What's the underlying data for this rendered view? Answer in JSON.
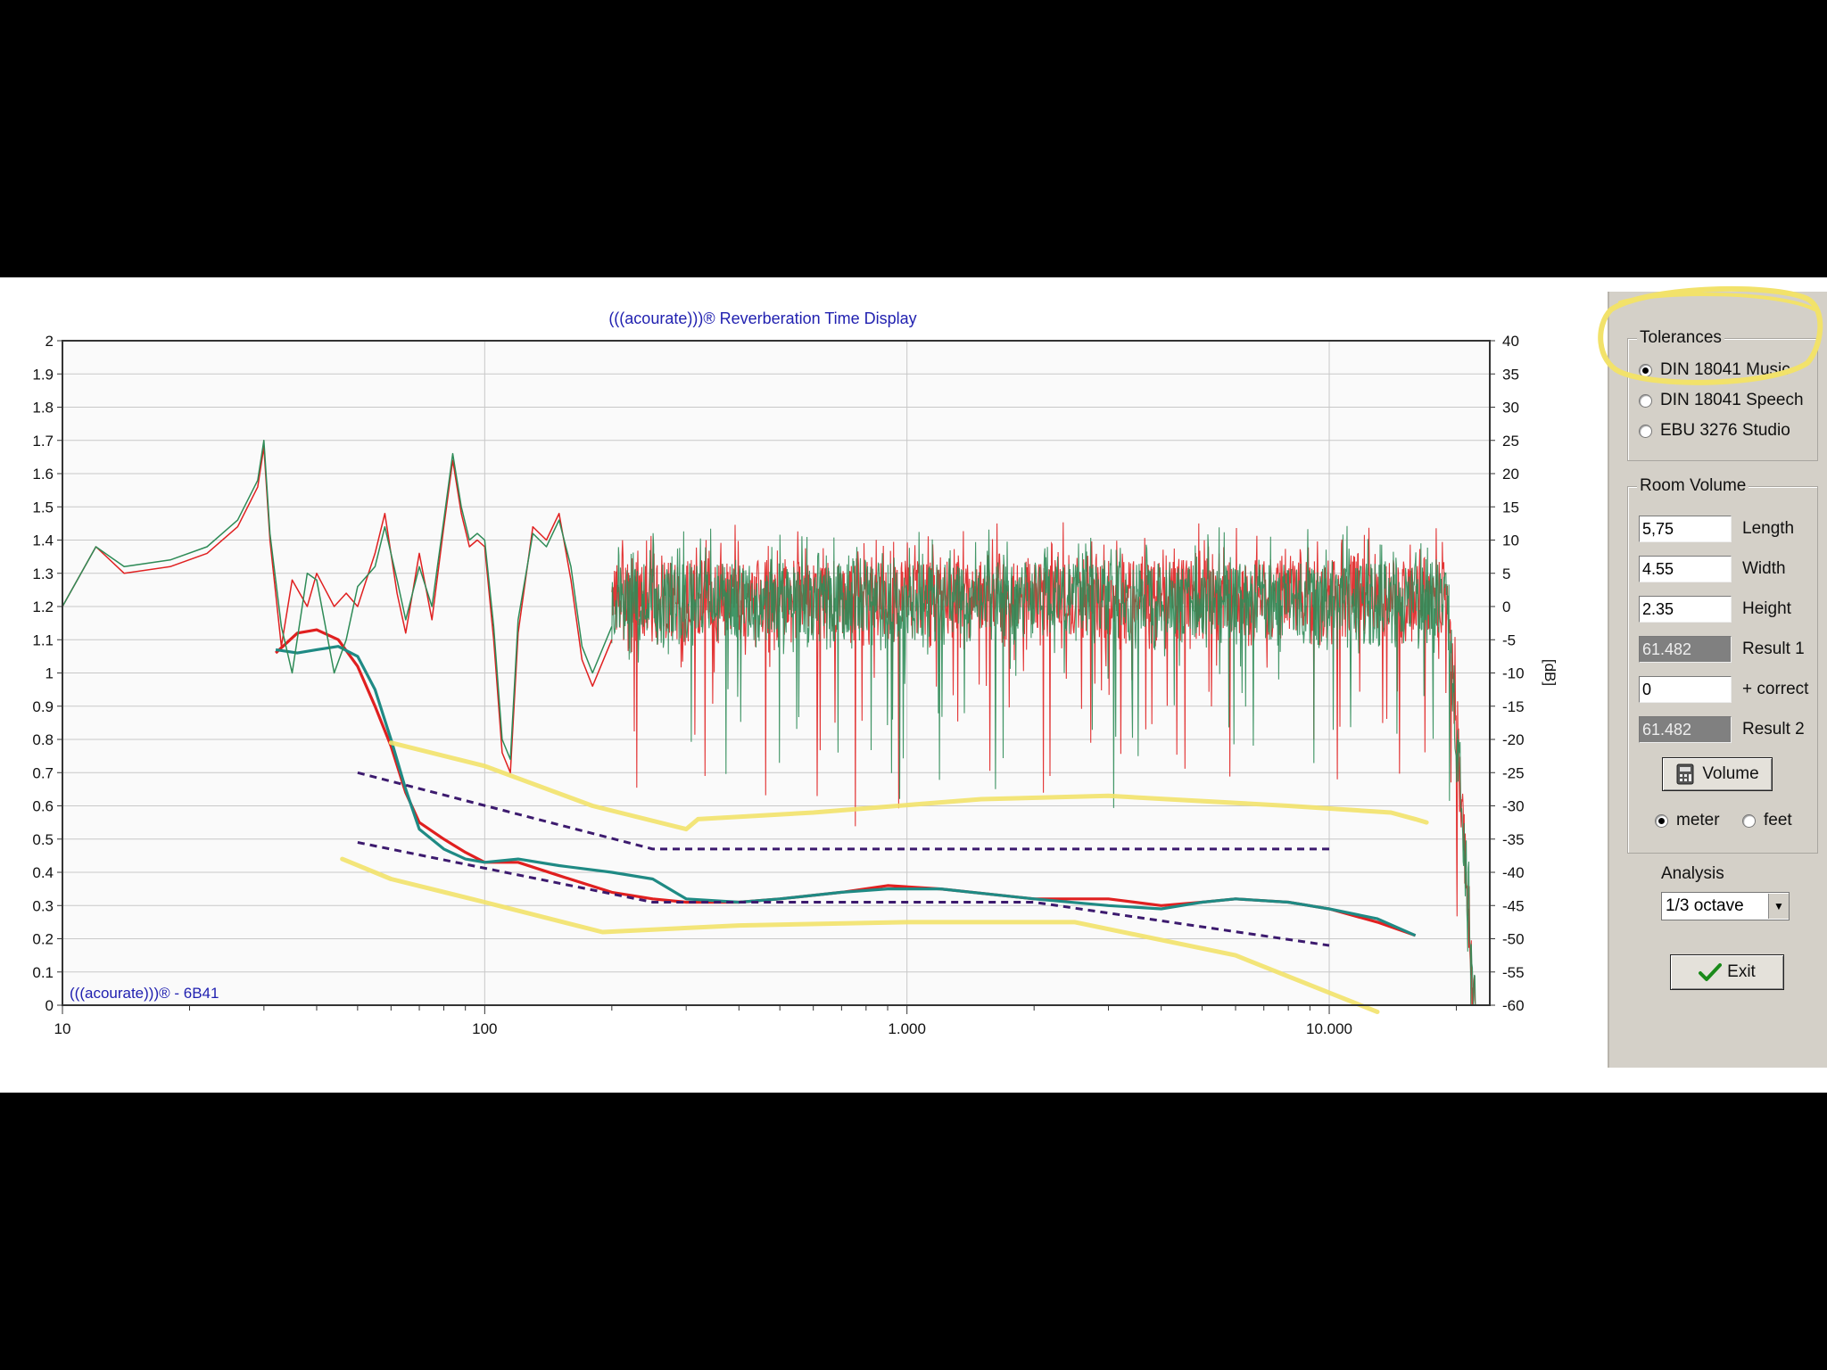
{
  "chart_data": {
    "type": "line",
    "title": "(((acourate)))® Reverberation Time Display",
    "watermark": "(((acourate)))® - 6B41",
    "xscale": "log",
    "xlim": [
      10,
      24000
    ],
    "xticks": [
      10,
      100,
      1000,
      10000
    ],
    "xtick_labels": [
      "10",
      "100",
      "1.000",
      "10.000"
    ],
    "ylim": [
      0,
      2
    ],
    "yticks": [
      0,
      0.1,
      0.2,
      0.3,
      0.4,
      0.5,
      0.6,
      0.7,
      0.8,
      0.9,
      1,
      1.1,
      1.2,
      1.3,
      1.4,
      1.5,
      1.6,
      1.7,
      1.8,
      1.9,
      2
    ],
    "ytick_labels": [
      "0",
      "0.1",
      "0.2",
      "0.3",
      "0.4",
      "0.5",
      "0.6",
      "0.7",
      "0.8",
      "0.9",
      "1",
      "1.1",
      "1.2",
      "1.3",
      "1.4",
      "1.5",
      "1.6",
      "1.7",
      "1.8",
      "1.9",
      "2"
    ],
    "y2label": "[dB]",
    "y2lim": [
      -60,
      40
    ],
    "y2ticks": [
      -60,
      -55,
      -50,
      -45,
      -40,
      -35,
      -30,
      -25,
      -20,
      -15,
      -10,
      -5,
      0,
      5,
      10,
      15,
      20,
      25,
      30,
      35,
      40
    ],
    "y2tick_labels": [
      "-60",
      "-55",
      "-50",
      "-45",
      "-40",
      "-35",
      "-30",
      "-25",
      "-20",
      "-15",
      "-10",
      "-5",
      "0",
      "5",
      "10",
      "15",
      "20",
      "25",
      "30",
      "35",
      "40"
    ],
    "grid": true,
    "series": [
      {
        "color": "#e02020",
        "axis": "y1",
        "x": [
          32,
          36,
          40,
          45,
          50,
          55,
          60,
          65,
          70,
          80,
          90,
          100,
          120,
          150,
          200,
          250,
          300,
          400,
          500,
          700,
          900,
          1200,
          2000,
          3000,
          4000,
          5000,
          6000,
          8000,
          10000,
          13000,
          16000
        ],
        "values": [
          1.06,
          1.12,
          1.13,
          1.1,
          1.02,
          0.9,
          0.78,
          0.64,
          0.55,
          0.5,
          0.46,
          0.43,
          0.43,
          0.39,
          0.34,
          0.32,
          0.31,
          0.31,
          0.32,
          0.34,
          0.36,
          0.35,
          0.32,
          0.32,
          0.3,
          0.31,
          0.32,
          0.31,
          0.29,
          0.25,
          0.21
        ]
      },
      {
        "color": "#1f8a84",
        "axis": "y1",
        "x": [
          32,
          36,
          40,
          45,
          50,
          55,
          60,
          65,
          70,
          80,
          90,
          100,
          120,
          150,
          200,
          250,
          300,
          400,
          500,
          700,
          900,
          1200,
          2000,
          3000,
          4000,
          5000,
          6000,
          8000,
          10000,
          13000,
          16000
        ],
        "values": [
          1.07,
          1.06,
          1.07,
          1.08,
          1.05,
          0.95,
          0.8,
          0.65,
          0.53,
          0.47,
          0.44,
          0.43,
          0.44,
          0.42,
          0.4,
          0.38,
          0.32,
          0.31,
          0.32,
          0.34,
          0.35,
          0.35,
          0.32,
          0.3,
          0.29,
          0.31,
          0.32,
          0.31,
          0.29,
          0.26,
          0.21
        ]
      },
      {
        "color": "#3c1a6e",
        "axis": "y1",
        "style": "dashed",
        "x": [
          50,
          250,
          10000
        ],
        "values": [
          0.7,
          0.47,
          0.47
        ]
      },
      {
        "color": "#3c1a6e",
        "axis": "y1",
        "style": "dashed",
        "x": [
          50,
          250,
          2000,
          10000
        ],
        "values": [
          0.49,
          0.31,
          0.31,
          0.18
        ]
      },
      {
        "color": "#e02020",
        "axis": "y2",
        "x": [
          10,
          12,
          14,
          18,
          22,
          26,
          29,
          30,
          31,
          33,
          35,
          38,
          40,
          44,
          47,
          50,
          55,
          58,
          62,
          65,
          70,
          75,
          80,
          84,
          88,
          92,
          96,
          100,
          105,
          110,
          115,
          120,
          130,
          140,
          150,
          160,
          170,
          180,
          200
        ],
        "values": [
          0,
          9,
          5,
          6,
          8,
          12,
          18,
          24,
          10,
          -6,
          4,
          0,
          5,
          0,
          2,
          0,
          8,
          14,
          2,
          -4,
          8,
          -2,
          12,
          22,
          14,
          9,
          10,
          9,
          -5,
          -22,
          -25,
          -4,
          12,
          10,
          14,
          4,
          -8,
          -12,
          -5
        ]
      },
      {
        "color": "#2e8b57",
        "axis": "y2",
        "x": [
          10,
          12,
          14,
          18,
          22,
          26,
          29,
          30,
          31,
          33,
          35,
          38,
          40,
          44,
          47,
          50,
          55,
          58,
          62,
          65,
          70,
          75,
          80,
          84,
          88,
          92,
          96,
          100,
          105,
          110,
          115,
          120,
          130,
          140,
          150,
          160,
          170,
          180,
          200
        ],
        "values": [
          0,
          9,
          6,
          7,
          9,
          13,
          19,
          25,
          11,
          -3,
          -10,
          5,
          4,
          -10,
          -5,
          3,
          6,
          12,
          4,
          -2,
          6,
          0,
          13,
          23,
          15,
          10,
          11,
          10,
          -3,
          -20,
          -23,
          -2,
          11,
          9,
          13,
          6,
          -6,
          -10,
          -3
        ]
      }
    ],
    "annotations": [
      {
        "type": "hand-drawn-highlight",
        "color": "#f2e26a",
        "target": "upper tolerance boundary"
      },
      {
        "type": "hand-drawn-highlight",
        "color": "#f2e26a",
        "target": "lower tolerance boundary"
      },
      {
        "type": "hand-drawn-circle",
        "color": "#f2e26a",
        "target": "Tolerances group"
      }
    ]
  },
  "colors": {
    "annotation": "#f2e26a",
    "panel": "#d4d0c8",
    "title_text": "#2121b0"
  },
  "panel": {
    "tolerances": {
      "title": "Tolerances",
      "options": [
        {
          "label": "DIN 18041 Music",
          "selected": true
        },
        {
          "label": "DIN 18041 Speech",
          "selected": false
        },
        {
          "label": "EBU 3276 Studio",
          "selected": false
        }
      ]
    },
    "room_volume": {
      "title": "Room Volume",
      "fields": [
        {
          "value": "5,75",
          "label": "Length",
          "readonly": false
        },
        {
          "value": "4.55",
          "label": "Width",
          "readonly": false
        },
        {
          "value": "2.35",
          "label": "Height",
          "readonly": false
        },
        {
          "value": "61.482",
          "label": "Result 1",
          "readonly": true
        },
        {
          "value": "0",
          "label": "+ correct",
          "readonly": false
        },
        {
          "value": "61.482",
          "label": "Result 2",
          "readonly": true
        }
      ],
      "volume_button": "Volume",
      "volume_icon": "calculator-icon",
      "units": [
        {
          "label": "meter",
          "selected": true
        },
        {
          "label": "feet",
          "selected": false
        }
      ]
    },
    "analysis": {
      "label": "Analysis",
      "value": "1/3 octave"
    },
    "exit_button": "Exit",
    "exit_icon": "checkmark-icon"
  }
}
